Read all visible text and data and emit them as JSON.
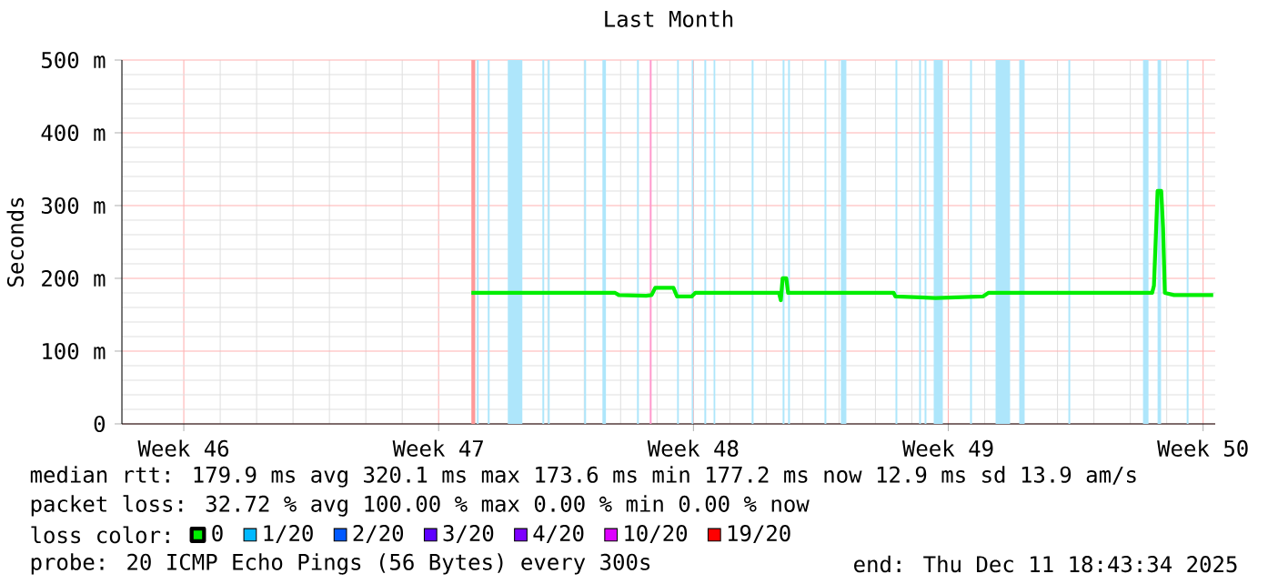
{
  "chart_data": {
    "type": "line",
    "title": "Last Month",
    "ylabel": "Seconds",
    "x": [
      "2025-11-21T09:36",
      "2025-11-25T08:24",
      "2025-11-25T10:48",
      "2025-11-26T04:48",
      "2025-11-26T08:24",
      "2025-11-26T10:48",
      "2025-11-26T22:48",
      "2025-11-27T01:12",
      "2025-11-27T10:48",
      "2025-11-27T13:12",
      "2025-11-29T20:24",
      "2025-11-29T21:36",
      "2025-11-29T22:48",
      "2025-11-30T01:12",
      "2025-11-30T02:24",
      "2025-12-03T00:00",
      "2025-12-03T01:12",
      "2025-12-04T03:36",
      "2025-12-05T10:48",
      "2025-12-05T14:24",
      "2025-12-10T02:24",
      "2025-12-10T03:36",
      "2025-12-10T06:00",
      "2025-12-10T08:24",
      "2025-12-10T09:36",
      "2025-12-10T10:48",
      "2025-12-10T16:48",
      "2025-12-11T18:40"
    ],
    "series": [
      {
        "name": "0",
        "color": "#00ee00",
        "values": [
          180,
          180,
          177,
          176,
          177,
          187,
          187,
          175,
          175,
          180,
          180,
          170,
          200,
          200,
          180,
          180,
          175,
          173,
          175,
          180,
          180,
          190,
          320,
          320,
          270,
          180,
          177,
          177
        ]
      },
      {
        "name": "1/20",
        "color": "#00b8ff",
        "values": [
          null,
          null,
          null,
          null,
          null,
          null,
          null,
          null,
          null,
          null,
          null,
          null,
          null,
          null,
          null,
          null,
          null,
          null,
          null,
          null,
          null,
          null,
          null,
          null,
          null,
          null,
          null,
          null
        ]
      },
      {
        "name": "2/20",
        "color": "#0059ff",
        "values": [
          null,
          null,
          null,
          null,
          null,
          null,
          null,
          null,
          null,
          null,
          null,
          null,
          null,
          null,
          null,
          null,
          null,
          null,
          null,
          null,
          null,
          null,
          null,
          null,
          null,
          null,
          null,
          null
        ]
      },
      {
        "name": "3/20",
        "color": "#5e00ff",
        "values": [
          null,
          null,
          null,
          null,
          null,
          null,
          null,
          null,
          null,
          null,
          null,
          null,
          null,
          null,
          null,
          null,
          null,
          null,
          null,
          null,
          null,
          null,
          null,
          null,
          null,
          null,
          null,
          null
        ]
      },
      {
        "name": "4/20",
        "color": "#7e00ff",
        "values": [
          null,
          null,
          null,
          null,
          null,
          null,
          null,
          null,
          null,
          null,
          null,
          null,
          null,
          null,
          null,
          null,
          null,
          null,
          null,
          null,
          null,
          null,
          null,
          null,
          null,
          null,
          null,
          null
        ]
      },
      {
        "name": "10/20",
        "color": "#dd00ff",
        "values": [
          null,
          null,
          null,
          null,
          null,
          null,
          null,
          null,
          null,
          null,
          null,
          null,
          null,
          null,
          null,
          null,
          null,
          null,
          null,
          null,
          null,
          null,
          null,
          null,
          null,
          null,
          null,
          null
        ]
      },
      {
        "name": "19/20",
        "color": "#ff0000",
        "values": [
          null,
          null,
          null,
          null,
          null,
          null,
          null,
          null,
          null,
          null,
          null,
          null,
          null,
          null,
          null,
          null,
          null,
          null,
          null,
          null,
          null,
          null,
          null,
          null,
          null,
          null,
          null,
          null
        ]
      }
    ],
    "legend_title": "loss color:",
    "legend": "bottom",
    "xlim": [
      "2025-11-11T19:12",
      "2025-12-11T20:00"
    ],
    "xticks": [
      {
        "value": "2025-11-13T12:00",
        "label": "Week 46"
      },
      {
        "value": "2025-11-20T12:00",
        "label": "Week 47"
      },
      {
        "value": "2025-11-27T12:00",
        "label": "Week 48"
      },
      {
        "value": "2025-12-04T12:00",
        "label": "Week 49"
      },
      {
        "value": "2025-12-11T12:00",
        "label": "Week 50"
      }
    ],
    "ylim": [
      0,
      500
    ],
    "yticks": [
      {
        "value": 0,
        "label": "0"
      },
      {
        "value": 100,
        "label": "100 m"
      },
      {
        "value": 200,
        "label": "200 m"
      },
      {
        "value": 300,
        "label": "300 m"
      },
      {
        "value": 400,
        "label": "400 m"
      },
      {
        "value": 500,
        "label": "500 m"
      }
    ],
    "grid": true,
    "bands": [
      {
        "axis": "x",
        "from": "2025-11-21T09:36",
        "to": "2025-11-21T12:00",
        "color": "#ff9999"
      },
      {
        "axis": "x",
        "from": "2025-11-21T13:12",
        "to": "2025-11-21T14:24",
        "color": "#aee6fb"
      },
      {
        "axis": "x",
        "from": "2025-11-21T20:24",
        "to": "2025-11-21T21:36",
        "color": "#aee6fb"
      },
      {
        "axis": "x",
        "from": "2025-11-22T09:36",
        "to": "2025-11-22T19:12",
        "color": "#aee6fb"
      },
      {
        "axis": "x",
        "from": "2025-11-23T08:24",
        "to": "2025-11-23T09:36",
        "color": "#aee6fb"
      },
      {
        "axis": "x",
        "from": "2025-11-23T12:00",
        "to": "2025-11-23T13:12",
        "color": "#aee6fb"
      },
      {
        "axis": "x",
        "from": "2025-11-24T12:00",
        "to": "2025-11-24T13:12",
        "color": "#aee6fb"
      },
      {
        "axis": "x",
        "from": "2025-11-25T00:00",
        "to": "2025-11-25T02:24",
        "color": "#aee6fb"
      },
      {
        "axis": "x",
        "from": "2025-11-25T22:48",
        "to": "2025-11-26T00:00",
        "color": "#aee6fb"
      },
      {
        "axis": "x",
        "from": "2025-11-26T07:12",
        "to": "2025-11-26T08:24",
        "color": "#ff99cc"
      },
      {
        "axis": "x",
        "from": "2025-11-27T01:12",
        "to": "2025-11-27T02:24",
        "color": "#aee6fb"
      },
      {
        "axis": "x",
        "from": "2025-11-27T10:48",
        "to": "2025-11-27T12:00",
        "color": "#aee6fb"
      },
      {
        "axis": "x",
        "from": "2025-11-27T19:12",
        "to": "2025-11-27T20:24",
        "color": "#aee6fb"
      },
      {
        "axis": "x",
        "from": "2025-11-28T01:12",
        "to": "2025-11-28T02:24",
        "color": "#aee6fb"
      },
      {
        "axis": "x",
        "from": "2025-11-29T02:24",
        "to": "2025-11-29T03:36",
        "color": "#aee6fb"
      },
      {
        "axis": "x",
        "from": "2025-11-29T22:48",
        "to": "2025-11-30T00:00",
        "color": "#aee6fb"
      },
      {
        "axis": "x",
        "from": "2025-11-30T02:24",
        "to": "2025-11-30T03:36",
        "color": "#aee6fb"
      },
      {
        "axis": "x",
        "from": "2025-12-01T02:24",
        "to": "2025-12-01T03:36",
        "color": "#aee6fb"
      },
      {
        "axis": "x",
        "from": "2025-12-01T13:12",
        "to": "2025-12-01T16:48",
        "color": "#aee6fb"
      },
      {
        "axis": "x",
        "from": "2025-12-03T01:12",
        "to": "2025-12-03T02:24",
        "color": "#aee6fb"
      },
      {
        "axis": "x",
        "from": "2025-12-03T16:48",
        "to": "2025-12-03T18:00",
        "color": "#aee6fb"
      },
      {
        "axis": "x",
        "from": "2025-12-03T20:24",
        "to": "2025-12-03T21:36",
        "color": "#aee6fb"
      },
      {
        "axis": "x",
        "from": "2025-12-04T02:24",
        "to": "2025-12-04T08:24",
        "color": "#aee6fb"
      },
      {
        "axis": "x",
        "from": "2025-12-05T02:24",
        "to": "2025-12-05T03:36",
        "color": "#aee6fb"
      },
      {
        "axis": "x",
        "from": "2025-12-05T19:12",
        "to": "2025-12-06T04:48",
        "color": "#aee6fb"
      },
      {
        "axis": "x",
        "from": "2025-12-06T10:48",
        "to": "2025-12-06T14:24",
        "color": "#aee6fb"
      },
      {
        "axis": "x",
        "from": "2025-12-07T19:12",
        "to": "2025-12-07T20:24",
        "color": "#aee6fb"
      },
      {
        "axis": "x",
        "from": "2025-12-09T20:24",
        "to": "2025-12-10T00:00",
        "color": "#aee6fb"
      },
      {
        "axis": "x",
        "from": "2025-12-10T06:00",
        "to": "2025-12-10T08:24",
        "color": "#aee6fb"
      },
      {
        "axis": "x",
        "from": "2025-12-11T01:12",
        "to": "2025-12-11T02:24",
        "color": "#aee6fb"
      }
    ],
    "annotations": [
      "median rtt:  179.9 ms avg  320.1 ms max  173.6 ms min  177.2 ms now  12.9 ms sd  13.9   am/s",
      "packet loss: 32.72 % avg  100.00 % max  0.00 % min  0.00 % now",
      "probe:       20 ICMP Echo Pings (56 Bytes) every 300s",
      "end: Thu Dec 11 18:43:34 2025"
    ]
  }
}
